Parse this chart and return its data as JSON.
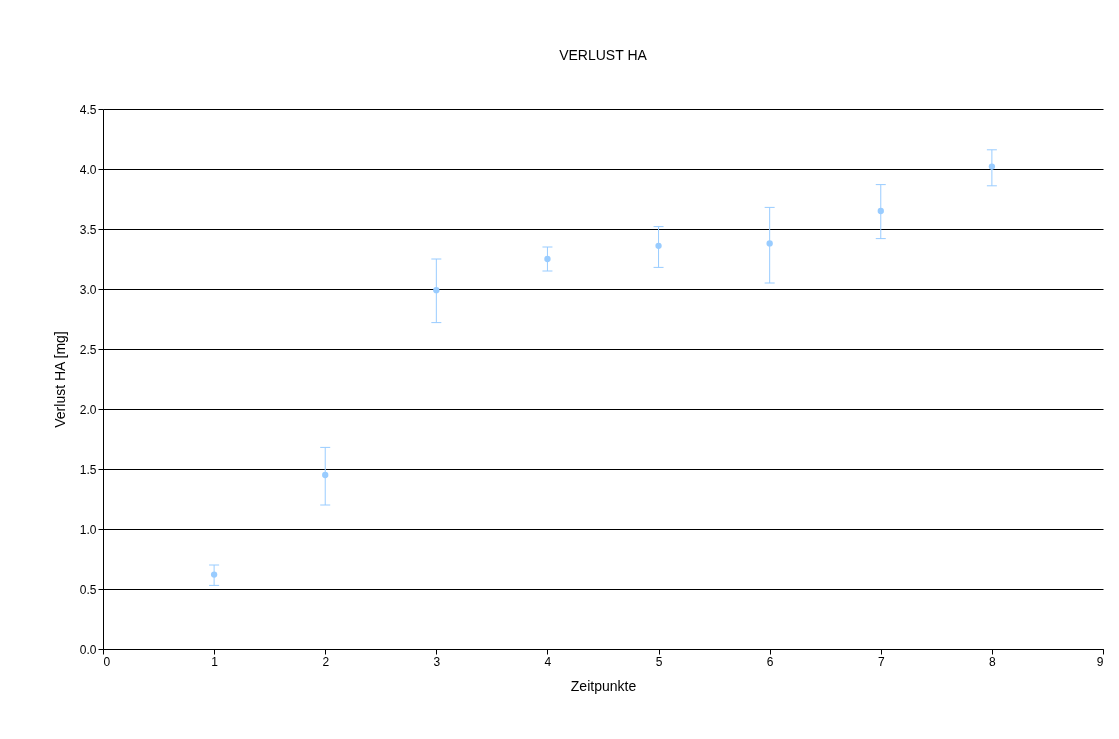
{
  "chart_data": {
    "type": "scatter",
    "title": "VERLUST HA",
    "xlabel": "Zeitpunkte",
    "ylabel": "Verlust HA [mg]",
    "x": [
      1,
      2,
      3,
      4,
      5,
      6,
      7,
      8
    ],
    "series": [
      {
        "color": "#99ccff",
        "values": [
          0.62,
          1.45,
          2.99,
          3.25,
          3.36,
          3.38,
          3.65,
          4.02
        ],
        "errors": [
          [
            0.53,
            0.7
          ],
          [
            1.2,
            1.68
          ],
          [
            2.72,
            3.25
          ],
          [
            3.15,
            3.35
          ],
          [
            3.18,
            3.52
          ],
          [
            3.05,
            3.68
          ],
          [
            3.42,
            3.87
          ],
          [
            3.86,
            4.16
          ]
        ]
      }
    ],
    "xlim": [
      0,
      9
    ],
    "xticks": [
      0,
      1,
      2,
      3,
      4,
      5,
      6,
      7,
      8,
      9
    ],
    "ylim": [
      0,
      4.5
    ],
    "yticks": [
      {
        "value": 0,
        "label": "0.0"
      },
      0.5,
      {
        "value": 1,
        "label": "1.0"
      },
      1.5,
      {
        "value": 2,
        "label": "2.0"
      },
      2.5,
      {
        "value": 3,
        "label": "3.0"
      },
      3.5,
      {
        "value": 4,
        "label": "4.0"
      },
      4.5
    ],
    "grid": "y",
    "marker": "circle"
  }
}
